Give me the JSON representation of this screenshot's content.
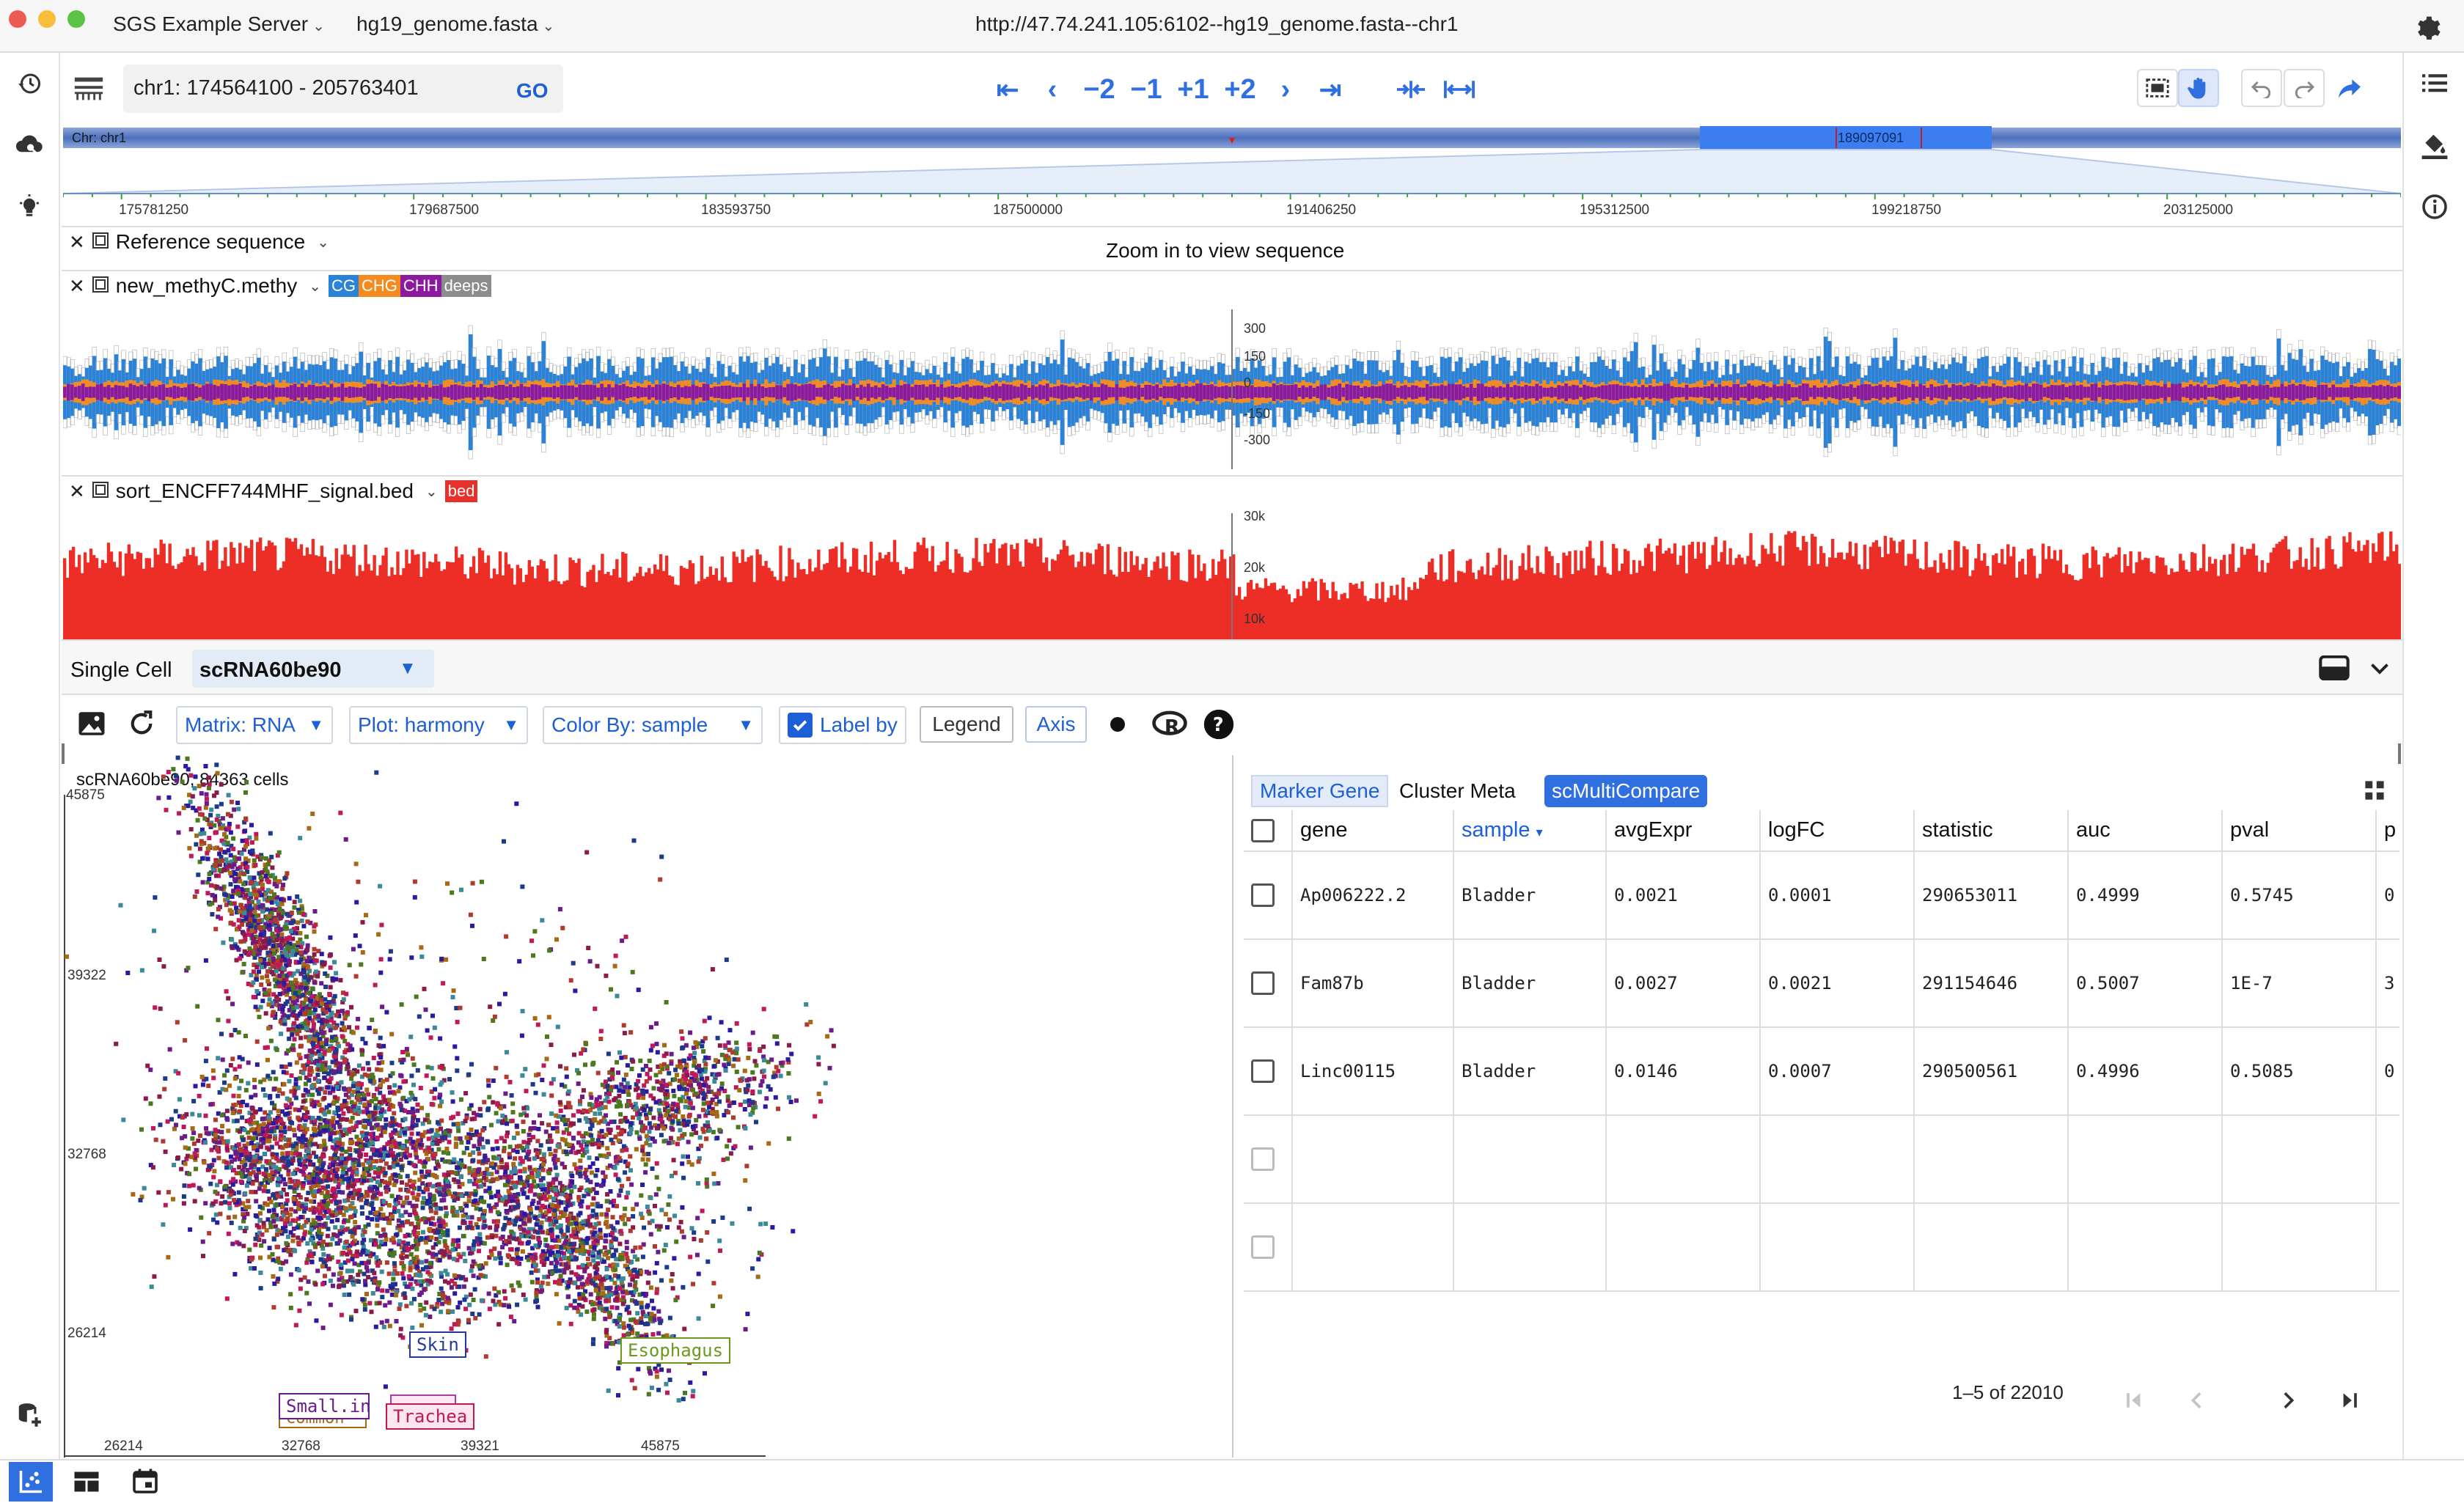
{
  "window": {
    "server_label": "SGS Example Server",
    "genome_label": "hg19_genome.fasta",
    "url": "http://47.74.241.105:6102--hg19_genome.fasta--chr1"
  },
  "toolbar": {
    "location_value": "chr1: 174564100 - 205763401",
    "go_label": "GO",
    "nav": [
      "⇤",
      "‹",
      "−2",
      "−1",
      "+1",
      "+2",
      "›",
      "⇥"
    ]
  },
  "chromosome": {
    "label": "Chr: chr1",
    "highlight_label": "189097091",
    "ticks": [
      "175781250",
      "179687500",
      "183593750",
      "187500000",
      "191406250",
      "195312500",
      "199218750",
      "203125000"
    ]
  },
  "tracks": {
    "reference": {
      "name": "Reference sequence",
      "message": "Zoom in to view sequence"
    },
    "methyl": {
      "name": "new_methyC.methy",
      "badges": [
        {
          "label": "CG",
          "color": "#2a83d8"
        },
        {
          "label": "CHG",
          "color": "#f58a1f"
        },
        {
          "label": "CHH",
          "color": "#8c1a9f"
        },
        {
          "label": "deeps",
          "color": "#8c8c8c"
        }
      ],
      "axis": [
        "300",
        "150",
        "0",
        "-150",
        "-300"
      ]
    },
    "bed": {
      "name": "sort_ENCFF744MHF_signal.bed",
      "badge": "bed",
      "axis": [
        "30k",
        "20k",
        "10k"
      ]
    }
  },
  "single_cell": {
    "title": "Single Cell",
    "dataset": "scRNA60be90",
    "matrix": "Matrix: RNA",
    "plot": "Plot: harmony",
    "color_by": "Color By: sample",
    "label_by": "Label by",
    "legend": "Legend",
    "axis": "Axis",
    "scatter": {
      "caption": "scRNA60be90, 84363 cells",
      "y_ticks": [
        "45875",
        "39322",
        "32768",
        "26214"
      ],
      "x_ticks": [
        "26214",
        "32768",
        "39321",
        "45875"
      ],
      "labels": [
        {
          "text": "Skin",
          "color": "#233a9c"
        },
        {
          "text": "Esophagus",
          "color": "#6a9a1d"
        },
        {
          "text": "Small.in",
          "color": "#6b1c8a"
        },
        {
          "text": "Common",
          "color": "#a56a12"
        },
        {
          "text": "Trachea",
          "color": "#c2185b"
        }
      ]
    }
  },
  "results": {
    "tabs": [
      "Marker Gene",
      "Cluster Meta",
      "scMultiCompare"
    ],
    "columns": [
      "gene",
      "sample",
      "avgExpr",
      "logFC",
      "statistic",
      "auc",
      "pval",
      "p"
    ],
    "rows": [
      [
        "Ap006222.2",
        "Bladder",
        "0.0021",
        "0.0001",
        "290653011",
        "0.4999",
        "0.5745",
        "0"
      ],
      [
        "Fam87b",
        "Bladder",
        "0.0027",
        "0.0021",
        "291154646",
        "0.5007",
        "1E-7",
        "3"
      ],
      [
        "Linc00115",
        "Bladder",
        "0.0146",
        "0.0007",
        "290500561",
        "0.4996",
        "0.5085",
        "0"
      ]
    ],
    "pagination": "1–5 of 22010"
  },
  "icons": [
    "history-icon",
    "cloud-search-icon",
    "lightbulb-icon",
    "database-add-icon",
    "list-icon",
    "paint-bucket-icon",
    "info-icon",
    "settings-gear-icon",
    "scatter-plot-icon",
    "table-layout-icon",
    "calendar-icon"
  ]
}
